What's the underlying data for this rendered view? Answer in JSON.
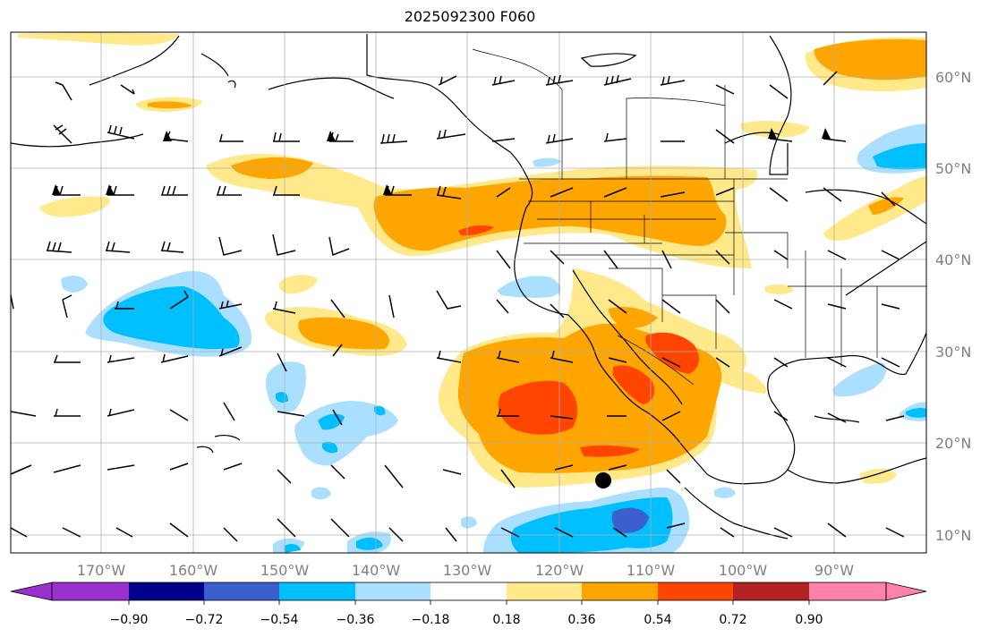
{
  "title": "2025092300 F060",
  "lat_labels": [
    "60°N",
    "50°N",
    "40°N",
    "30°N",
    "20°N",
    "10°N"
  ],
  "lon_labels": [
    "170°W",
    "160°W",
    "150°W",
    "140°W",
    "130°W",
    "120°W",
    "110°W",
    "100°W",
    "90°W"
  ],
  "colorbar": {
    "ticks": [
      "−0.90",
      "−0.72",
      "−0.54",
      "−0.36",
      "−0.18",
      "0.18",
      "0.36",
      "0.54",
      "0.72",
      "0.90"
    ],
    "colors": [
      "#9932cc",
      "#00008b",
      "#3b5fcd",
      "#00bfff",
      "#aadfff",
      "#ffffff",
      "#ffe98a",
      "#ffa500",
      "#ff4500",
      "#b22222",
      "#ff82ab"
    ]
  },
  "colors": {
    "pos_light": "#ffe98a",
    "pos_mid": "#ffa500",
    "pos_strong": "#ff4500",
    "neg_light": "#aadfff",
    "neg_mid": "#00bfff",
    "neg_strong": "#3b5fcd",
    "grid": "#b0b0b0",
    "label": "#808080"
  },
  "marker": {
    "name": "storm-center-marker",
    "color": "#000000"
  }
}
